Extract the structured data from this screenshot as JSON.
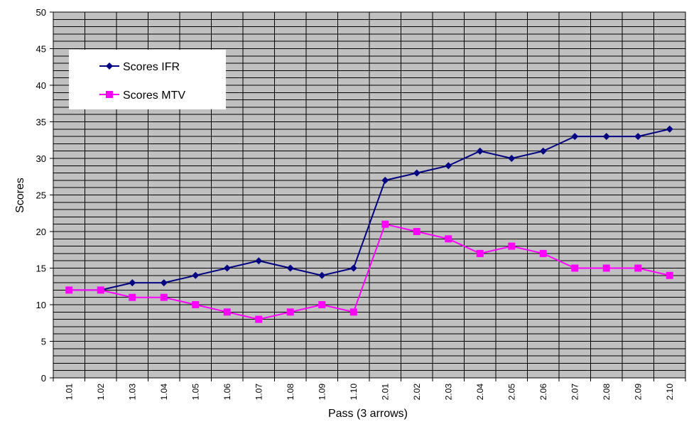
{
  "chart_data": {
    "type": "line",
    "title": "",
    "xlabel": "Pass (3 arrows)",
    "ylabel": "Scores",
    "ylim": [
      0,
      50
    ],
    "y_ticks": [
      0,
      5,
      10,
      15,
      20,
      25,
      30,
      35,
      40,
      45,
      50
    ],
    "categories": [
      "1.01",
      "1.02",
      "1.03",
      "1.04",
      "1.05",
      "1.06",
      "1.07",
      "1.08",
      "1.09",
      "1.10",
      "2.01",
      "2.02",
      "2.03",
      "2.04",
      "2.05",
      "2.06",
      "2.07",
      "2.08",
      "2.09",
      "2.10"
    ],
    "grid": true,
    "legend_position": "top-left",
    "plot_background": "#c0c0c0",
    "series": [
      {
        "name": "Scores IFR",
        "color": "#000080",
        "marker": "diamond",
        "values": [
          12,
          12,
          13,
          13,
          14,
          15,
          16,
          15,
          14,
          15,
          27,
          28,
          29,
          31,
          30,
          31,
          33,
          33,
          33,
          34
        ]
      },
      {
        "name": "Scores MTV",
        "color": "#ff00ff",
        "marker": "square",
        "values": [
          12,
          12,
          11,
          11,
          10,
          9,
          8,
          9,
          10,
          9,
          21,
          20,
          19,
          17,
          18,
          17,
          15,
          15,
          15,
          14
        ]
      }
    ]
  }
}
